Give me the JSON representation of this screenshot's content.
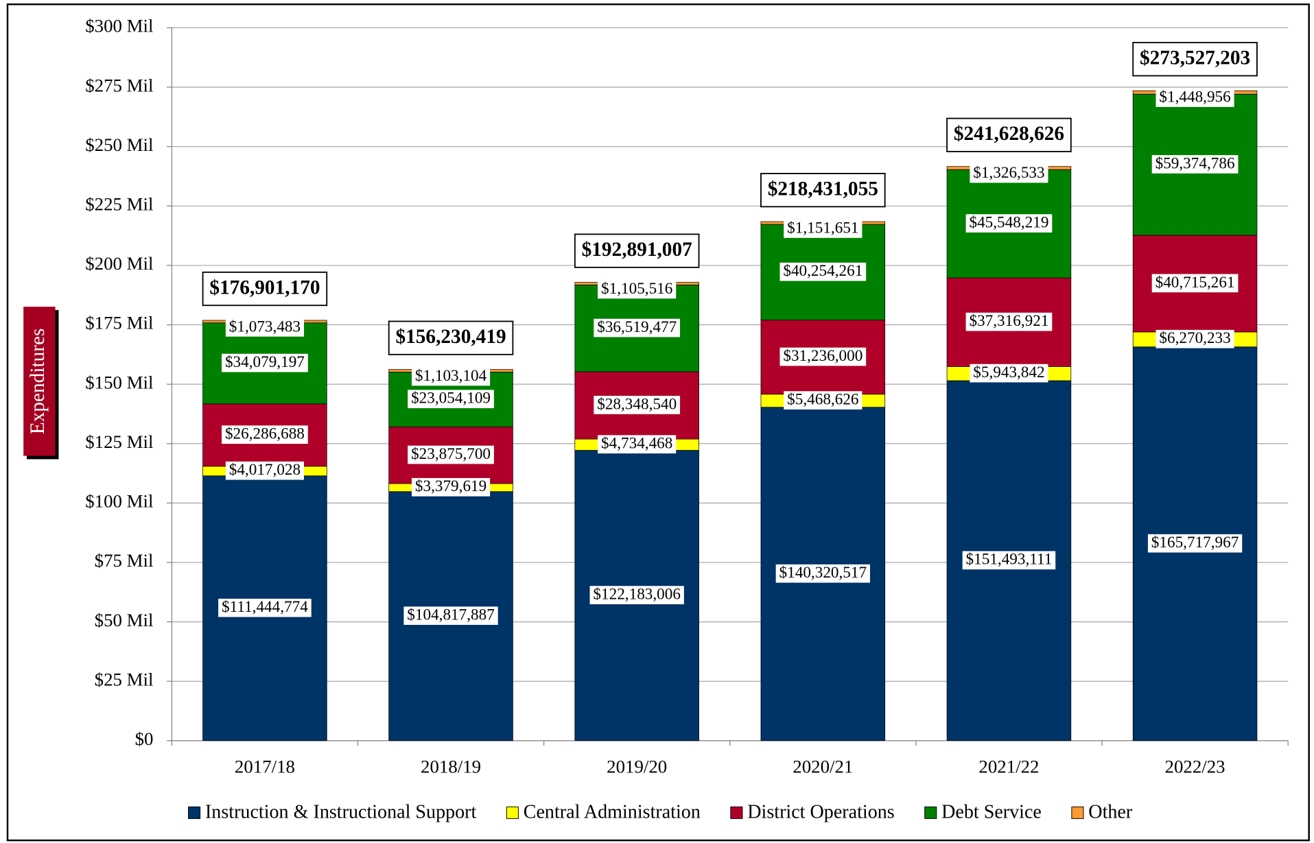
{
  "chart_data": {
    "type": "stacked_bar",
    "y_label": "Expenditures",
    "categories": [
      "2017/18",
      "2018/19",
      "2019/20",
      "2020/21",
      "2021/22",
      "2022/23"
    ],
    "series": [
      {
        "name": "Instruction & Instructional Support",
        "color": "#003366",
        "values": [
          111444774,
          104817887,
          122183006,
          140320517,
          151493111,
          165717967
        ],
        "value_labels": [
          "$111,444,774",
          "$104,817,887",
          "$122,183,006",
          "$140,320,517",
          "$151,493,111",
          "$165,717,967"
        ]
      },
      {
        "name": "Central Administration",
        "color": "#ffff00",
        "values": [
          4017028,
          3379619,
          4734468,
          5468626,
          5943842,
          6270233
        ],
        "value_labels": [
          "$4,017,028",
          "$3,379,619",
          "$4,734,468",
          "$5,468,626",
          "$5,943,842",
          "$6,270,233"
        ]
      },
      {
        "name": "District Operations",
        "color": "#b0002a",
        "values": [
          26286688,
          23875700,
          28348540,
          31236000,
          37316921,
          40715261
        ],
        "value_labels": [
          "$26,286,688",
          "$23,875,700",
          "$28,348,540",
          "$31,236,000",
          "$37,316,921",
          "$40,715,261"
        ]
      },
      {
        "name": "Debt Service",
        "color": "#008000",
        "values": [
          34079197,
          23054109,
          36519477,
          40254261,
          45548219,
          59374786
        ],
        "value_labels": [
          "$34,079,197",
          "$23,054,109",
          "$36,519,477",
          "$40,254,261",
          "$45,548,219",
          "$59,374,786"
        ]
      },
      {
        "name": "Other",
        "color": "#ff9933",
        "values": [
          1073483,
          1103104,
          1105516,
          1151651,
          1326533,
          1448956
        ],
        "value_labels": [
          "$1,073,483",
          "$1,103,104",
          "$1,105,516",
          "$1,151,651",
          "$1,326,533",
          "$1,448,956"
        ]
      }
    ],
    "totals": [
      176901170,
      156230419,
      192891007,
      218431055,
      241628626,
      273527203
    ],
    "total_labels": [
      "$176,901,170",
      "$156,230,419",
      "$192,891,007",
      "$218,431,055",
      "$241,628,626",
      "$273,527,203"
    ],
    "ylim": [
      0,
      300000000
    ],
    "yticks": [
      {
        "value": 0,
        "label": "$0"
      },
      {
        "value": 25000000,
        "label": "$25 Mil"
      },
      {
        "value": 50000000,
        "label": "$50 Mil"
      },
      {
        "value": 75000000,
        "label": "$75 Mil"
      },
      {
        "value": 100000000,
        "label": "$100 Mil"
      },
      {
        "value": 125000000,
        "label": "$125 Mil"
      },
      {
        "value": 150000000,
        "label": "$150 Mil"
      },
      {
        "value": 175000000,
        "label": "$175 Mil"
      },
      {
        "value": 200000000,
        "label": "$200 Mil"
      },
      {
        "value": 225000000,
        "label": "$225 Mil"
      },
      {
        "value": 250000000,
        "label": "$250 Mil"
      },
      {
        "value": 275000000,
        "label": "$275 Mil"
      },
      {
        "value": 300000000,
        "label": "$300 Mil"
      }
    ],
    "grid": true,
    "legend": "bottom"
  }
}
